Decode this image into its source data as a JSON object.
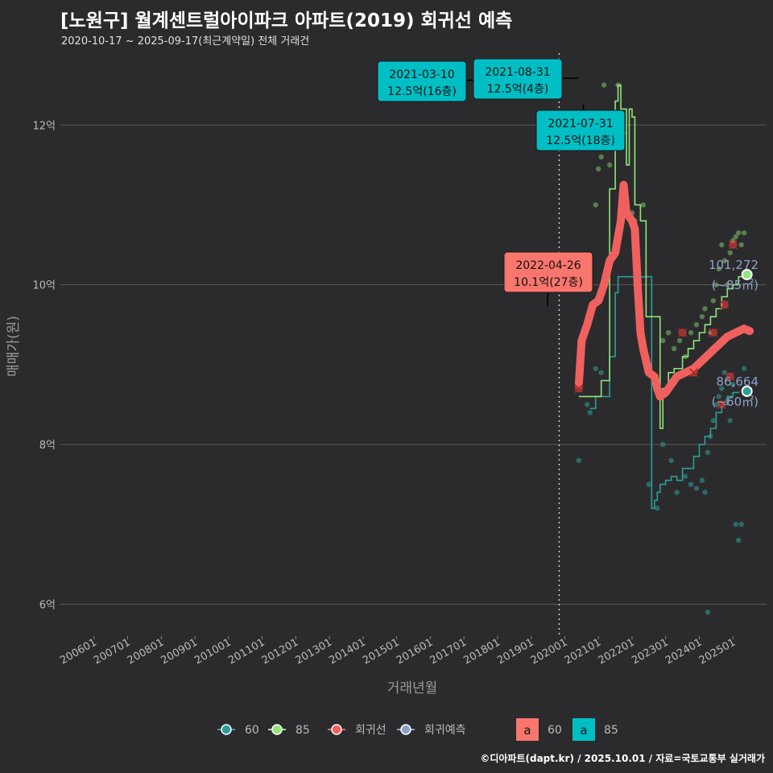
{
  "header": {
    "title": "[노원구] 월계센트럴아이파크 아파트(2019) 회귀선 예측",
    "subtitle": "2020-10-17 ~ 2025-09-17(최근계약일) 전체 거래건"
  },
  "footer": {
    "credit": "©디아파트(dapt.kr) / 2025.10.01 / 자료=국토교통부 실거래가"
  },
  "colors": {
    "background": "#2b2b2d",
    "grid": "#5a5a5a",
    "s60": "#2e9e9a",
    "s85": "#90e67a",
    "regression": "#f0605e",
    "forecast": "#8fa0c8",
    "label_teal": "#00bfc4",
    "label_red": "#f8766d"
  },
  "chart_data": {
    "type": "line",
    "xlabel": "거래년월",
    "ylabel": "매매가(원)",
    "ylim": [
      5.6,
      12.9
    ],
    "y_unit": "억",
    "yticks": [
      {
        "value": 6,
        "label": "6억"
      },
      {
        "value": 8,
        "label": "8억"
      },
      {
        "value": 10,
        "label": "10억"
      },
      {
        "value": 12,
        "label": "12억"
      }
    ],
    "xlim": [
      2005.0,
      2026.0
    ],
    "xticks": [
      "200601",
      "200701",
      "200801",
      "200901",
      "201001",
      "201101",
      "201201",
      "201301",
      "201401",
      "201501",
      "201601",
      "201701",
      "201801",
      "201901",
      "202001",
      "202101",
      "202201",
      "202301",
      "202401",
      "202501"
    ],
    "vline_date": "2019-11",
    "series": [
      {
        "name": "60",
        "points": [
          [
            "2020-10",
            8.45
          ],
          [
            "2020-12",
            8.6
          ],
          [
            "2021-02",
            8.6
          ],
          [
            "2021-04",
            8.6
          ],
          [
            "2021-05",
            9.1
          ],
          [
            "2021-06",
            9.1
          ],
          [
            "2021-07",
            9.9
          ],
          [
            "2021-08",
            10.1
          ],
          [
            "2021-10",
            10.1
          ],
          [
            "2022-02",
            10.1
          ],
          [
            "2022-06",
            10.1
          ],
          [
            "2022-08",
            7.2
          ],
          [
            "2022-09",
            7.3
          ],
          [
            "2022-10",
            7.4
          ],
          [
            "2022-11",
            7.5
          ],
          [
            "2023-01",
            7.55
          ],
          [
            "2023-03",
            7.6
          ],
          [
            "2023-05",
            7.55
          ],
          [
            "2023-07",
            7.7
          ],
          [
            "2023-09",
            7.7
          ],
          [
            "2023-11",
            7.85
          ],
          [
            "2024-01",
            8.0
          ],
          [
            "2024-03",
            8.1
          ],
          [
            "2024-05",
            8.2
          ],
          [
            "2024-07",
            8.4
          ],
          [
            "2024-09",
            8.5
          ],
          [
            "2024-11",
            8.6
          ],
          [
            "2025-01",
            8.65
          ],
          [
            "2025-03",
            8.66
          ]
        ],
        "latest": {
          "date": "2025-06",
          "value": 8.6664,
          "label": "86,664",
          "area": "(~60㎡)"
        },
        "scatter": [
          [
            "2020-06",
            7.8
          ],
          [
            "2020-09",
            8.5
          ],
          [
            "2020-10",
            8.4
          ],
          [
            "2020-12",
            8.95
          ],
          [
            "2021-02",
            8.9
          ],
          [
            "2022-07",
            7.5
          ],
          [
            "2022-10",
            7.2
          ],
          [
            "2022-12",
            8.0
          ],
          [
            "2023-03",
            7.8
          ],
          [
            "2023-05",
            7.4
          ],
          [
            "2023-08",
            7.6
          ],
          [
            "2023-10",
            7.5
          ],
          [
            "2023-12",
            7.45
          ],
          [
            "2024-02",
            7.55
          ],
          [
            "2024-03",
            7.4
          ],
          [
            "2024-04",
            7.9
          ],
          [
            "2024-05",
            8.1
          ],
          [
            "2024-06",
            8.3
          ],
          [
            "2024-07",
            8.5
          ],
          [
            "2024-08",
            8.6
          ],
          [
            "2024-09",
            8.7
          ],
          [
            "2024-10",
            8.9
          ],
          [
            "2024-11",
            8.55
          ],
          [
            "2024-12",
            8.3
          ],
          [
            "2025-01",
            8.75
          ],
          [
            "2025-02",
            7.0
          ],
          [
            "2025-03",
            6.8
          ],
          [
            "2025-04",
            7.0
          ],
          [
            "2025-05",
            8.95
          ],
          [
            "2024-04",
            5.9
          ]
        ]
      },
      {
        "name": "85",
        "points": [
          [
            "2020-06",
            8.6
          ],
          [
            "2020-10",
            8.6
          ],
          [
            "2021-02",
            8.8
          ],
          [
            "2021-05",
            11.2
          ],
          [
            "2021-07",
            12.3
          ],
          [
            "2021-08",
            12.5
          ],
          [
            "2021-09",
            12.2
          ],
          [
            "2021-11",
            11.5
          ],
          [
            "2021-12",
            12.2
          ],
          [
            "2022-01",
            12.1
          ],
          [
            "2022-02",
            11.0
          ],
          [
            "2022-04",
            10.8
          ],
          [
            "2022-06",
            9.6
          ],
          [
            "2022-08",
            9.6
          ],
          [
            "2022-11",
            8.2
          ],
          [
            "2022-12",
            8.7
          ],
          [
            "2023-02",
            8.9
          ],
          [
            "2023-04",
            8.95
          ],
          [
            "2023-07",
            9.1
          ],
          [
            "2023-09",
            9.2
          ],
          [
            "2023-11",
            9.3
          ],
          [
            "2024-01",
            9.4
          ],
          [
            "2024-03",
            9.5
          ],
          [
            "2024-05",
            9.6
          ],
          [
            "2024-07",
            9.7
          ],
          [
            "2024-09",
            9.85
          ],
          [
            "2024-11",
            9.95
          ],
          [
            "2025-01",
            10.0
          ],
          [
            "2025-03",
            10.1
          ],
          [
            "2025-05",
            10.13
          ]
        ],
        "latest": {
          "date": "2025-06",
          "value": 10.1272,
          "label": "101,272",
          "area": "(~85㎡)"
        },
        "scatter": [
          [
            "2020-12",
            11.0
          ],
          [
            "2021-01",
            11.45
          ],
          [
            "2021-02",
            11.6
          ],
          [
            "2021-03",
            12.5
          ],
          [
            "2021-05",
            11.5
          ],
          [
            "2021-08",
            12.5
          ],
          [
            "2021-10",
            11.9
          ],
          [
            "2022-01",
            10.9
          ],
          [
            "2022-02",
            10.8
          ],
          [
            "2022-05",
            11.0
          ],
          [
            "2022-12",
            9.3
          ],
          [
            "2023-02",
            9.4
          ],
          [
            "2023-04",
            9.2
          ],
          [
            "2023-06",
            9.3
          ],
          [
            "2023-08",
            9.1
          ],
          [
            "2023-10",
            9.4
          ],
          [
            "2023-12",
            9.5
          ],
          [
            "2024-02",
            9.6
          ],
          [
            "2024-03",
            9.7
          ],
          [
            "2024-05",
            9.4
          ],
          [
            "2024-06",
            9.8
          ],
          [
            "2024-07",
            10.0
          ],
          [
            "2024-08",
            10.2
          ],
          [
            "2024-09",
            10.5
          ],
          [
            "2024-10",
            10.3
          ],
          [
            "2024-11",
            10.0
          ],
          [
            "2024-12",
            10.4
          ],
          [
            "2025-01",
            10.55
          ],
          [
            "2025-02",
            10.6
          ],
          [
            "2025-03",
            10.65
          ],
          [
            "2025-04",
            10.5
          ],
          [
            "2025-05",
            10.65
          ]
        ]
      },
      {
        "name": "회귀선",
        "points": [
          [
            "2020-06",
            8.75
          ],
          [
            "2020-07",
            9.3
          ],
          [
            "2020-09",
            9.5
          ],
          [
            "2020-11",
            9.75
          ],
          [
            "2021-01",
            9.8
          ],
          [
            "2021-03",
            10.0
          ],
          [
            "2021-05",
            10.3
          ],
          [
            "2021-07",
            10.4
          ],
          [
            "2021-09",
            10.8
          ],
          [
            "2021-10",
            11.25
          ],
          [
            "2021-11",
            10.9
          ],
          [
            "2022-01",
            10.8
          ],
          [
            "2022-02",
            10.7
          ],
          [
            "2022-03",
            10.0
          ],
          [
            "2022-04",
            9.4
          ],
          [
            "2022-05",
            9.2
          ],
          [
            "2022-07",
            8.9
          ],
          [
            "2022-09",
            8.85
          ],
          [
            "2022-10",
            8.7
          ],
          [
            "2022-11",
            8.6
          ],
          [
            "2023-01",
            8.65
          ],
          [
            "2023-03",
            8.75
          ],
          [
            "2023-05",
            8.85
          ],
          [
            "2023-08",
            8.9
          ],
          [
            "2023-11",
            8.95
          ],
          [
            "2024-02",
            9.05
          ],
          [
            "2024-05",
            9.15
          ],
          [
            "2024-08",
            9.25
          ],
          [
            "2024-11",
            9.35
          ],
          [
            "2025-02",
            9.4
          ],
          [
            "2025-05",
            9.45
          ],
          [
            "2025-07",
            9.42
          ]
        ],
        "crosses": [
          [
            "2020-06",
            8.7
          ],
          [
            "2023-07",
            9.4
          ],
          [
            "2023-11",
            8.9
          ],
          [
            "2024-06",
            9.4
          ],
          [
            "2024-09",
            8.5
          ],
          [
            "2024-10",
            9.75
          ],
          [
            "2024-12",
            8.85
          ],
          [
            "2025-01",
            10.5
          ]
        ]
      },
      {
        "name": "회귀예측",
        "points": []
      }
    ],
    "annotations": [
      {
        "date": "2021-03-10",
        "price": "12.5억(16층)",
        "series": "85",
        "color": "teal"
      },
      {
        "date": "2021-08-31",
        "price": "12.5억(4층)",
        "series": "85",
        "color": "teal"
      },
      {
        "date": "2021-07-31",
        "price": "12.5억(18층)",
        "series": "85",
        "color": "teal"
      },
      {
        "date": "2022-04-26",
        "price": "10.1억(27층)",
        "series": "60",
        "color": "red"
      }
    ],
    "legend": {
      "position": "bottom",
      "line_items": [
        "60",
        "85",
        "회귀선",
        "회귀예측"
      ],
      "box_items": [
        {
          "glyph": "a",
          "label": "60",
          "color": "label_red"
        },
        {
          "glyph": "a",
          "label": "85",
          "color": "label_teal"
        }
      ]
    }
  }
}
